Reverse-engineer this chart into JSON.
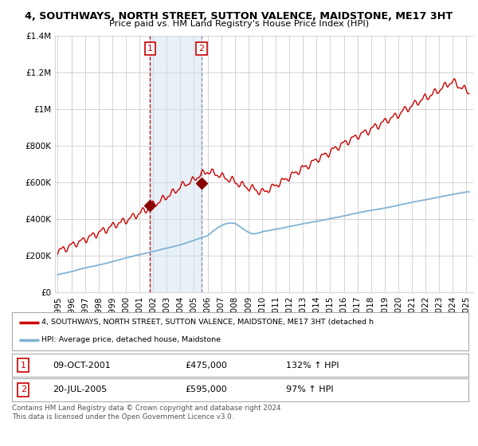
{
  "title": "4, SOUTHWAYS, NORTH STREET, SUTTON VALENCE, MAIDSTONE, ME17 3HT",
  "subtitle": "Price paid vs. HM Land Registry's House Price Index (HPI)",
  "bg_color": "#ffffff",
  "plot_bg_color": "#ffffff",
  "grid_color": "#cccccc",
  "red_line_color": "#cc0000",
  "blue_line_color": "#7fb3d3",
  "sale1_date_num": 2001.77,
  "sale2_date_num": 2005.55,
  "sale1_price": 475000,
  "sale2_price": 595000,
  "vline1_color": "#cc0000",
  "vline1_style": "dashed",
  "vline2_color": "#8888aa",
  "vline2_style": "dashed",
  "vshade_color": "#d0e4f0",
  "legend_line1": "4, SOUTHWAYS, NORTH STREET, SUTTON VALENCE, MAIDSTONE, ME17 3HT (detached h",
  "legend_line2": "HPI: Average price, detached house, Maidstone",
  "table_row1": [
    "1",
    "09-OCT-2001",
    "£475,000",
    "132% ↑ HPI"
  ],
  "table_row2": [
    "2",
    "20-JUL-2005",
    "£595,000",
    "97% ↑ HPI"
  ],
  "footer": "Contains HM Land Registry data © Crown copyright and database right 2024.\nThis data is licensed under the Open Government Licence v3.0.",
  "ylim_max": 1400000,
  "xlim_start": 1994.8,
  "xlim_end": 2025.5
}
